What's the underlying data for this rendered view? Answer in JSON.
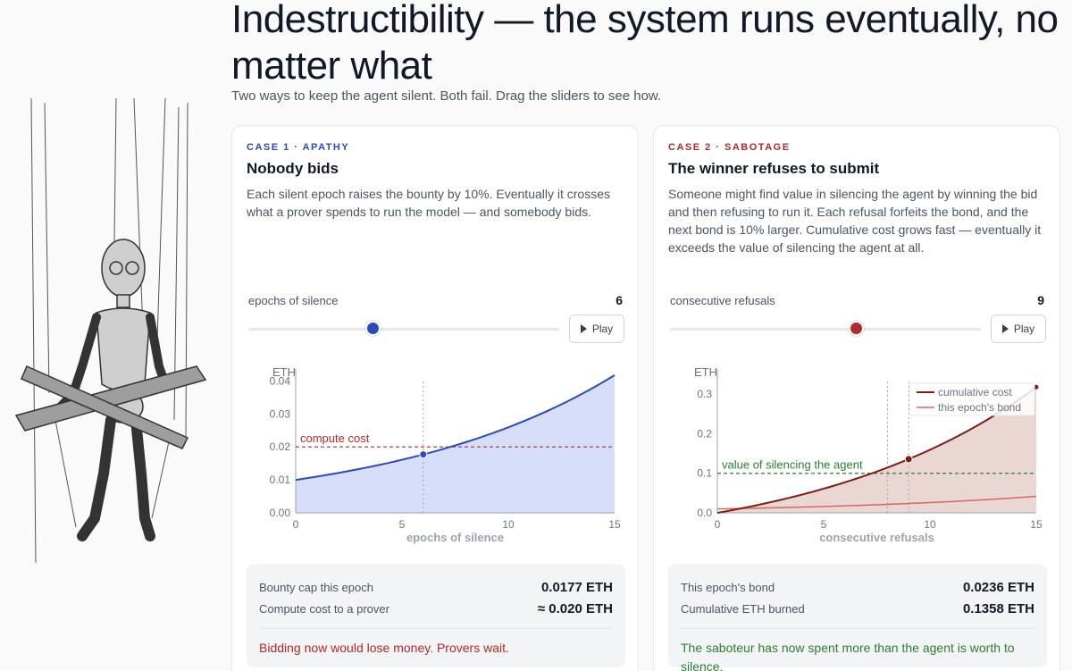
{
  "page": {
    "title": "Indestructibility — the system runs eventually, no matter what",
    "subtitle": "Two ways to keep the agent silent. Both fail. Drag the sliders to see how."
  },
  "colors": {
    "case1_accent": "#2c4bb8",
    "case2_accent": "#b02a2a",
    "success": "#2e7d32"
  },
  "icons": {
    "play": "play-icon"
  },
  "case1": {
    "kicker": "CASE 1 · APATHY",
    "heading": "Nobody bids",
    "description": "Each silent epoch raises the bounty by 10%. Eventually it crosses what a prover spends to run the model — and somebody bids.",
    "slider_label": "epochs of silence",
    "slider_value": "6",
    "slider_min": 0,
    "slider_max": 15,
    "slider_current": 6,
    "play_label": "Play",
    "stats": [
      {
        "label": "Bounty cap this epoch",
        "value": "0.0177 ETH"
      },
      {
        "label": "Compute cost to a prover",
        "value": "≈ 0.020 ETH"
      }
    ],
    "verdict": "Bidding now would lose money. Provers wait."
  },
  "case2": {
    "kicker": "CASE 2 · SABOTAGE",
    "heading": "The winner refuses to submit",
    "description": "Someone might find value in silencing the agent by winning the bid and then refusing to run it. Each refusal forfeits the bond, and the next bond is 10% larger. Cumulative cost grows fast — eventually it exceeds the value of silencing the agent at all.",
    "slider_label": "consecutive refusals",
    "slider_value": "9",
    "slider_min": 0,
    "slider_max": 15,
    "slider_current": 9,
    "play_label": "Play",
    "stats": [
      {
        "label": "This epoch's bond",
        "value": "0.0236 ETH"
      },
      {
        "label": "Cumulative ETH burned",
        "value": "0.1358 ETH"
      }
    ],
    "verdict": "The saboteur has now spent more than the agent is worth to silence."
  },
  "chart_data": [
    {
      "type": "area",
      "ylabel": "ETH",
      "xlabel": "epochs of silence",
      "xlim": [
        0,
        15
      ],
      "ylim": [
        0,
        0.042
      ],
      "x_ticks": [
        0,
        5,
        10,
        15
      ],
      "x_tick_labels": [
        "0",
        "5",
        "10",
        "15"
      ],
      "y_ticks": [
        0,
        0.01,
        0.02,
        0.03,
        0.04
      ],
      "y_tick_labels": [
        "0.00",
        "0.01",
        "0.02",
        "0.03",
        "0.04"
      ],
      "series": [
        {
          "start": 0.01,
          "growth": 1.1,
          "x_range": [
            0,
            15
          ],
          "color": "#2c4bb8",
          "fill": "#d6defa"
        }
      ],
      "threshold": {
        "value": 0.02,
        "label": "compute cost",
        "color": "#b02a2a"
      },
      "marker_x": 6,
      "grid": false
    },
    {
      "type": "area",
      "ylabel": "ETH",
      "xlabel": "consecutive refusals",
      "xlim": [
        0,
        15
      ],
      "ylim": [
        0,
        0.35
      ],
      "x_ticks": [
        0,
        5,
        10,
        15
      ],
      "x_tick_labels": [
        "0",
        "5",
        "10",
        "15"
      ],
      "y_ticks": [
        0,
        0.1,
        0.2,
        0.3
      ],
      "y_tick_labels": [
        "0.0",
        "0.1",
        "0.2",
        "0.3"
      ],
      "series": [
        {
          "name": "cumulative cost",
          "bond_start": 0.01,
          "growth": 1.1,
          "color": "#7a1f14",
          "fill": "#ead7d3"
        },
        {
          "name": "this epoch's bond",
          "bond_start": 0.01,
          "growth": 1.1,
          "color": "#d06a60"
        }
      ],
      "threshold": {
        "value": 0.1,
        "label": "value of silencing the agent",
        "color": "#2e7d32"
      },
      "crossover_x": 8,
      "marker_x": 9,
      "legend_position": "top-right",
      "grid": false
    }
  ]
}
